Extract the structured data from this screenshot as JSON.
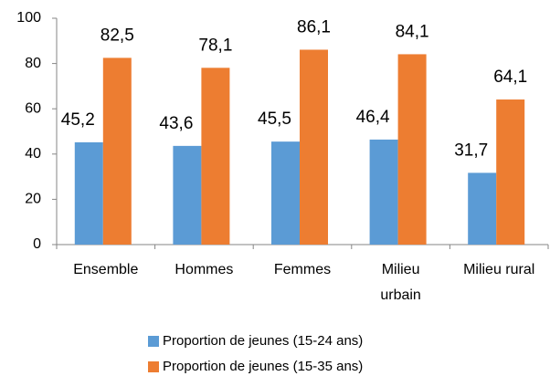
{
  "chart_data": {
    "type": "bar",
    "categories": [
      "Ensemble",
      "Hommes",
      "Femmes",
      "Milieu urbain",
      "Milieu rural"
    ],
    "series": [
      {
        "name": "Proportion de jeunes (15-24 ans)",
        "color": "#5b9bd5",
        "values": [
          45.2,
          43.6,
          45.5,
          46.4,
          31.7
        ],
        "value_labels": [
          "45,2",
          "43,6",
          "45,5",
          "46,4",
          "31,7"
        ]
      },
      {
        "name": "Proportion de jeunes (15-35 ans)",
        "color": "#ed7d31",
        "values": [
          82.5,
          78.1,
          86.1,
          84.1,
          64.1
        ],
        "value_labels": [
          "82,5",
          "78,1",
          "86,1",
          "84,1",
          "64,1"
        ]
      }
    ],
    "ylim": [
      0,
      100
    ],
    "yticks": [
      0,
      20,
      40,
      60,
      80,
      100
    ],
    "grid": false,
    "legend": "bottom"
  }
}
